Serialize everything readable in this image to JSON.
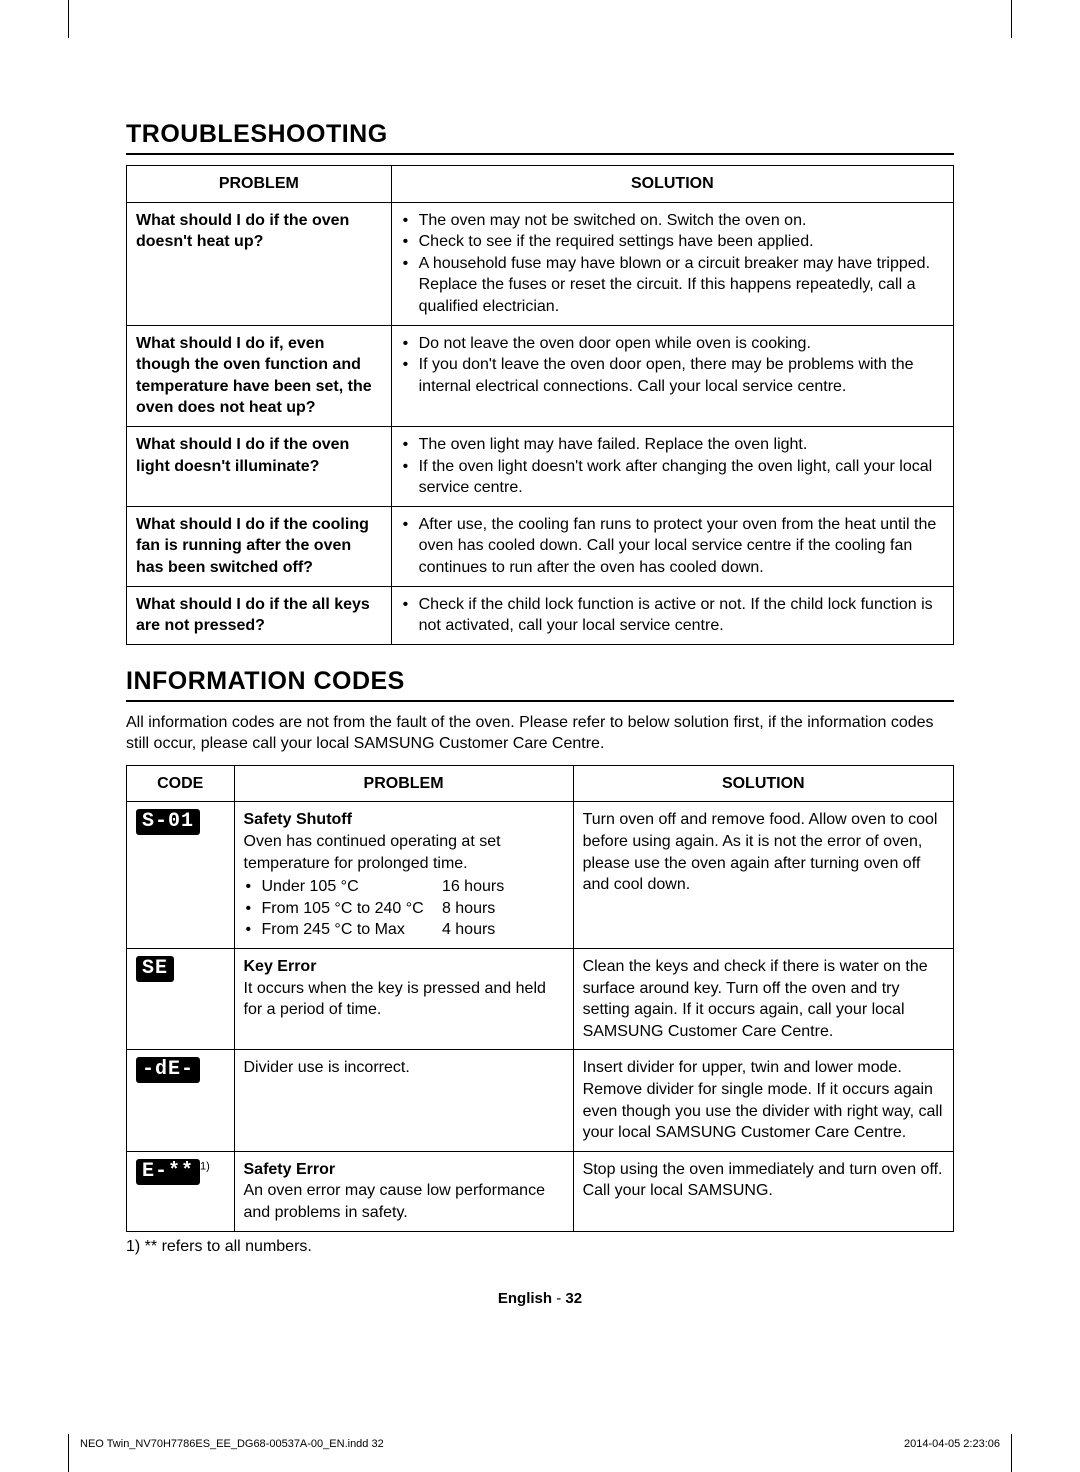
{
  "sections": {
    "troubleshooting_title": "TROUBLESHOOTING",
    "info_codes_title": "INFORMATION CODES"
  },
  "troubleshooting": {
    "headers": {
      "problem": "PROBLEM",
      "solution": "SOLUTION"
    },
    "rows": [
      {
        "problem": "What should I do if the oven doesn't heat up?",
        "solutions": [
          "The oven may not be switched on. Switch the oven on.",
          "Check to see if the required settings have been applied.",
          "A household fuse may have blown or a circuit breaker may have tripped. Replace the fuses or reset the circuit. If this happens repeatedly, call a qualified electrician."
        ]
      },
      {
        "problem": "What should I do if, even though the oven function and temperature have been set, the oven does not heat up?",
        "solutions": [
          "Do not leave the oven door open while oven is cooking.",
          "If you don't leave the oven door open, there may be problems with the internal electrical connections. Call your local service centre."
        ]
      },
      {
        "problem": "What should I do if the oven light doesn't illuminate?",
        "solutions": [
          "The oven light may have failed. Replace the oven light.",
          "If the oven light doesn't work after changing the oven light, call your local service centre."
        ]
      },
      {
        "problem": "What should I do if the cooling fan is running after the oven has been switched off?",
        "solutions": [
          "After use, the cooling fan runs to protect your oven from the heat until the oven has cooled down. Call your local service centre if the cooling fan continues to run after the oven has cooled down."
        ]
      },
      {
        "problem": "What should I do if the all keys are not pressed?",
        "solutions": [
          "Check if the child lock function is active or not. If the child lock function is not activated, call your local service centre."
        ]
      }
    ]
  },
  "info_intro": "All information codes are not from the fault of the oven. Please refer to below solution first, if the information codes still occur, please call your local SAMSUNG Customer Care Centre.",
  "info_codes": {
    "headers": {
      "code": "CODE",
      "problem": "PROBLEM",
      "solution": "SOLUTION"
    },
    "rows": [
      {
        "code": "S-01",
        "code_style": "seg",
        "title": "Safety Shutoff",
        "desc": "Oven has continued operating at set temperature for prolonged time.",
        "spec": [
          {
            "label": "Under 105 °C",
            "value": "16 hours"
          },
          {
            "label": "From 105 °C to 240 °C",
            "value": "8 hours"
          },
          {
            "label": "From 245 °C to Max",
            "value": "4 hours"
          }
        ],
        "solution": "Turn oven off and remove food. Allow oven to cool before using again. As it is not the error of oven, please use the oven again after turning oven off and cool down."
      },
      {
        "code": "SE",
        "code_style": "seg",
        "title": "Key Error",
        "desc": "It occurs when the key is pressed and held for a period of time.",
        "solution": "Clean the keys and check if there is water on the surface around key. Turn off the oven and try setting again. If it occurs again, call your local SAMSUNG Customer Care Centre."
      },
      {
        "code": "-dE-",
        "code_style": "seg",
        "desc": "Divider use is incorrect.",
        "solution": "Insert divider for upper, twin and lower mode. Remove divider for single mode. If it occurs again even though you use the divider with right way, call your local SAMSUNG Customer Care Centre."
      },
      {
        "code": "E-**",
        "code_sup": "1)",
        "code_style": "seg",
        "title": "Safety Error",
        "desc": "An oven error may cause low performance and problems in safety.",
        "solution": "Stop using the oven immediately and turn oven off.\nCall your local SAMSUNG."
      }
    ]
  },
  "footnote": "1) ** refers to all numbers.",
  "pagefoot": {
    "lang": "English",
    "sep": " - ",
    "num": "32"
  },
  "printfoot": {
    "left": "NEO Twin_NV70H7786ES_EE_DG68-00537A-00_EN.indd   32",
    "right": "2014-04-05    2:23:06"
  }
}
